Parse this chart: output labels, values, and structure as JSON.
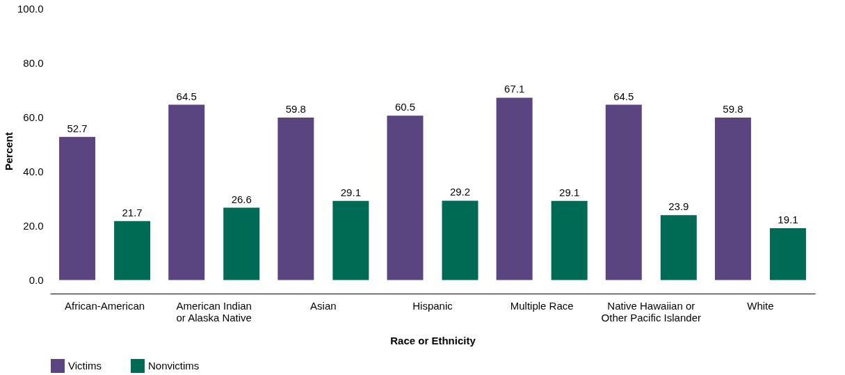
{
  "chart_data": {
    "type": "bar",
    "xlabel": "Race or Ethnicity",
    "ylabel": "Percent",
    "categories": [
      "African-American",
      "American Indian\nor Alaska Native",
      "Asian",
      "Hispanic",
      "Multiple Race",
      "Native Hawaiian or\nOther Pacific Islander",
      "White"
    ],
    "series": [
      {
        "name": "Victims",
        "color": "#5b4580",
        "values": [
          52.7,
          64.5,
          59.8,
          60.5,
          67.1,
          64.5,
          59.8
        ]
      },
      {
        "name": "Nonvictims",
        "color": "#006b54",
        "values": [
          21.7,
          26.6,
          29.1,
          29.2,
          29.1,
          23.9,
          19.1
        ]
      }
    ],
    "ylim": [
      -5,
      100
    ],
    "yticks": [
      {
        "value": 0,
        "label": "0.0"
      },
      {
        "value": 20,
        "label": "20.0"
      },
      {
        "value": 40,
        "label": "40.0"
      },
      {
        "value": 60,
        "label": "60.0"
      },
      {
        "value": 80,
        "label": "80.0"
      },
      {
        "value": 100,
        "label": "100.0"
      }
    ],
    "data_labels": true,
    "grid": false,
    "legend": "bottom"
  }
}
